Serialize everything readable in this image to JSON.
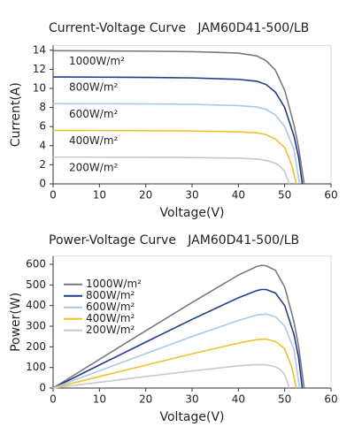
{
  "chart_data": [
    {
      "type": "line",
      "title": "Current-Voltage Curve   JAM60D41-500/LB",
      "xlabel": "Voltage(V)",
      "ylabel": "Current(A)",
      "xlim": [
        0,
        60
      ],
      "xticks": [
        0,
        10,
        20,
        30,
        40,
        50,
        60
      ],
      "ylim": [
        0,
        14.5
      ],
      "yticks": [
        0,
        2,
        4,
        6,
        8,
        10,
        12,
        14
      ],
      "legend": "inline",
      "series": [
        {
          "name": "1000W/m²",
          "color": "#7a7a7a",
          "x": [
            0,
            10,
            20,
            30,
            40,
            44,
            46,
            48,
            50,
            52,
            53,
            54.2
          ],
          "values": [
            13.95,
            13.93,
            13.9,
            13.85,
            13.7,
            13.4,
            12.9,
            11.9,
            9.8,
            6.2,
            3.8,
            0
          ]
        },
        {
          "name": "800W/m²",
          "color": "#1f3c88",
          "x": [
            0,
            10,
            20,
            30,
            40,
            44,
            46,
            48,
            50,
            52,
            53,
            53.8
          ],
          "values": [
            11.2,
            11.18,
            11.15,
            11.1,
            10.95,
            10.75,
            10.4,
            9.6,
            8.0,
            5.0,
            2.8,
            0
          ]
        },
        {
          "name": "600W/m²",
          "color": "#a9c8ea",
          "x": [
            0,
            10,
            20,
            30,
            40,
            44,
            46,
            48,
            50,
            52,
            53.2
          ],
          "values": [
            8.4,
            8.39,
            8.37,
            8.33,
            8.2,
            8.05,
            7.8,
            7.2,
            6.0,
            3.6,
            0
          ]
        },
        {
          "name": "400W/m²",
          "color": "#f0c030",
          "x": [
            0,
            10,
            20,
            30,
            40,
            44,
            46,
            48,
            50,
            51.5,
            52.5
          ],
          "values": [
            5.6,
            5.59,
            5.57,
            5.54,
            5.45,
            5.35,
            5.15,
            4.7,
            3.8,
            2.0,
            0
          ]
        },
        {
          "name": "200W/m²",
          "color": "#c8c8c8",
          "x": [
            0,
            10,
            20,
            30,
            40,
            44,
            46,
            48,
            49,
            50,
            51
          ],
          "values": [
            2.8,
            2.79,
            2.78,
            2.76,
            2.7,
            2.6,
            2.45,
            2.15,
            1.85,
            1.3,
            0
          ]
        }
      ]
    },
    {
      "type": "line",
      "title": "Power-Voltage Curve   JAM60D41-500/LB",
      "xlabel": "Voltage(V)",
      "ylabel": "Power(W)",
      "xlim": [
        0,
        60
      ],
      "xticks": [
        0,
        10,
        20,
        30,
        40,
        50,
        60
      ],
      "ylim": [
        0,
        640
      ],
      "yticks": [
        0,
        100,
        200,
        300,
        400,
        500,
        600
      ],
      "legend": "upper left",
      "series": [
        {
          "name": "1000W/m²",
          "color": "#7a7a7a",
          "x": [
            0,
            10,
            20,
            30,
            40,
            44,
            45,
            46,
            48,
            50,
            52,
            53,
            54.2
          ],
          "values": [
            0,
            139,
            278,
            415,
            548,
            590,
            595,
            593,
            571,
            490,
            322,
            201,
            0
          ]
        },
        {
          "name": "800W/m²",
          "color": "#1f3c88",
          "x": [
            0,
            10,
            20,
            30,
            40,
            44,
            45,
            46,
            48,
            50,
            52,
            53,
            53.8
          ],
          "values": [
            0,
            112,
            223,
            333,
            438,
            473,
            478,
            478,
            461,
            400,
            260,
            148,
            0
          ]
        },
        {
          "name": "600W/m²",
          "color": "#a9c8ea",
          "x": [
            0,
            10,
            20,
            30,
            40,
            44,
            45,
            46,
            48,
            50,
            52,
            53.2
          ],
          "values": [
            0,
            84,
            167,
            250,
            328,
            354,
            357,
            359,
            346,
            300,
            187,
            0
          ]
        },
        {
          "name": "400W/m²",
          "color": "#f0c030",
          "x": [
            0,
            10,
            20,
            30,
            40,
            44,
            45,
            46,
            48,
            50,
            51.5,
            52.5
          ],
          "values": [
            0,
            56,
            111,
            166,
            218,
            235,
            237,
            237,
            226,
            190,
            103,
            0
          ]
        },
        {
          "name": "200W/m²",
          "color": "#c8c8c8",
          "x": [
            0,
            10,
            20,
            30,
            40,
            44,
            46,
            48,
            49,
            50,
            51
          ],
          "values": [
            0,
            28,
            56,
            83,
            108,
            114,
            113,
            103,
            91,
            65,
            0
          ]
        }
      ]
    }
  ]
}
